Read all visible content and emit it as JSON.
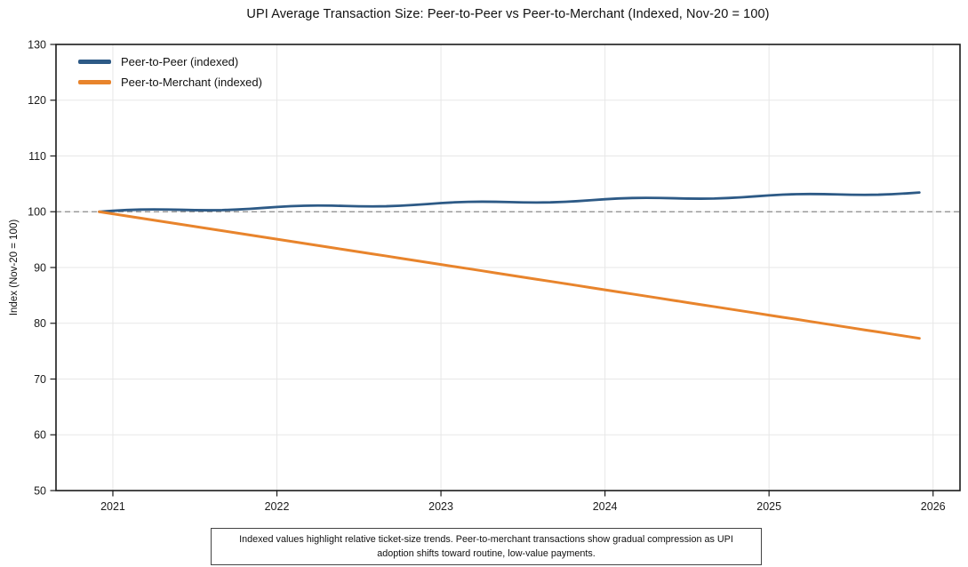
{
  "figure": {
    "title": "UPI Average Transaction Size: Peer-to-Peer vs Peer-to-Merchant (Indexed, Nov-20 = 100)"
  },
  "chart_data": {
    "type": "line",
    "title": "UPI Average Transaction Size: Peer-to-Peer vs Peer-to-Merchant (Indexed, Nov-20 = 100)",
    "xlabel": "",
    "ylabel": "Index (Nov-20 = 100)",
    "x_frequency": "monthly",
    "x_range_label": "Nov-2020 to Nov-2025 (month-end)",
    "ylim": [
      50,
      130
    ],
    "xlim_months": [
      -3.16,
      62.97
    ],
    "y_ticks": [
      50,
      60,
      70,
      80,
      90,
      100,
      110,
      120,
      130
    ],
    "x_ticks": {
      "positions_months": [
        1,
        13,
        25,
        37,
        49,
        61
      ],
      "labels": [
        "2021",
        "2022",
        "2023",
        "2024",
        "2025",
        "2026"
      ]
    },
    "grid": true,
    "legend_position": "upper-left",
    "legend_frame": false,
    "reference_line": {
      "value": 100,
      "style": "dashed",
      "color": "#8a8a8a"
    },
    "series": [
      {
        "name": "Peer-to-Peer (indexed)",
        "color": "#2d5a86",
        "line_width": 2.8,
        "values": [
          100.0,
          100.17,
          100.31,
          100.39,
          100.42,
          100.4,
          100.35,
          100.29,
          100.27,
          100.3,
          100.39,
          100.52,
          100.69,
          100.86,
          101.0,
          101.08,
          101.11,
          101.09,
          101.04,
          100.98,
          100.96,
          100.99,
          101.08,
          101.21,
          101.38,
          101.55,
          101.69,
          101.77,
          101.8,
          101.78,
          101.73,
          101.67,
          101.65,
          101.68,
          101.77,
          101.9,
          102.07,
          102.24,
          102.38,
          102.46,
          102.49,
          102.47,
          102.42,
          102.36,
          102.34,
          102.37,
          102.46,
          102.59,
          102.76,
          102.93,
          103.07,
          103.15,
          103.18,
          103.16,
          103.11,
          103.05,
          103.03,
          103.06,
          103.15,
          103.28,
          103.45
        ]
      },
      {
        "name": "Peer-to-Merchant (indexed)",
        "color": "#e8842c",
        "line_width": 3.0,
        "values": [
          100.0,
          99.62,
          99.24,
          98.87,
          98.49,
          98.11,
          97.73,
          97.35,
          96.97,
          96.6,
          96.22,
          95.84,
          95.46,
          95.08,
          94.7,
          94.33,
          93.95,
          93.57,
          93.19,
          92.81,
          92.43,
          92.06,
          91.68,
          91.3,
          90.92,
          90.54,
          90.16,
          89.79,
          89.41,
          89.03,
          88.65,
          88.27,
          87.89,
          87.52,
          87.14,
          86.76,
          86.38,
          86.0,
          85.62,
          85.25,
          84.87,
          84.49,
          84.11,
          83.73,
          83.35,
          82.98,
          82.6,
          82.22,
          81.84,
          81.46,
          81.08,
          80.71,
          80.33,
          79.95,
          79.57,
          79.19,
          78.81,
          78.44,
          78.06,
          77.68,
          77.3
        ]
      }
    ]
  },
  "caption": {
    "text": "Indexed values highlight relative ticket-size trends. Peer-to-merchant transactions show gradual compression as UPI adoption shifts toward routine, low-value payments."
  },
  "colors": {
    "p2p_line": "#2d5a86",
    "p2m_line": "#e8842c",
    "reference_line": "#8a8a8a",
    "gridline": "#e7e7e7",
    "spine": "#1a1a1a",
    "background": "#ffffff"
  }
}
